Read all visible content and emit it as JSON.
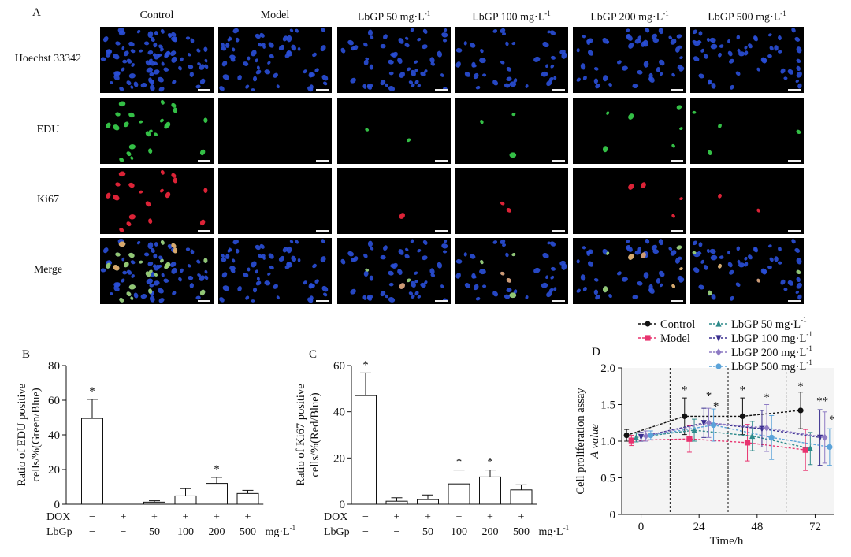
{
  "panelA": {
    "letter": "A",
    "columns": [
      "Control",
      "Model",
      "LbGP 50 mg·L",
      "LbGP 100 mg·L",
      "LbGP 200 mg·L",
      "LbGP 500 mg·L"
    ],
    "column_sup": "-1",
    "rows": [
      "Hoechst 33342",
      "EDU",
      "Ki67",
      "Merge"
    ],
    "stain_colors": {
      "Hoechst 33342": "#2a4fd8",
      "EDU": "#37c94a",
      "Ki67": "#e8253a"
    },
    "positive_nuclei_per_field": {
      "EDU": [
        24,
        0,
        2,
        3,
        6,
        4
      ],
      "Ki67": [
        18,
        0,
        1,
        2,
        4,
        2
      ]
    }
  },
  "chart_data": [
    {
      "panel": "B",
      "type": "bar",
      "ylabel": "Ratio of EDU positive cells/%(Green/Blue)",
      "ylim": [
        0,
        80
      ],
      "yticks": [
        0,
        20,
        40,
        60,
        80
      ],
      "values": [
        49.5,
        0,
        1.2,
        4.8,
        12.0,
        6.2
      ],
      "errors": [
        11,
        0,
        0.8,
        4.2,
        3.5,
        1.8
      ],
      "significance": [
        "*",
        "",
        "",
        "",
        "*",
        ""
      ],
      "treatment_rows": {
        "DOX": [
          "−",
          "+",
          "+",
          "+",
          "+",
          "+"
        ],
        "LbGp": [
          "−",
          "−",
          "50",
          "100",
          "200",
          "500"
        ],
        "unit": "mg·L",
        "unit_sup": "-1"
      }
    },
    {
      "panel": "C",
      "type": "bar",
      "ylabel": "Ratio of Ki67 positive cells/%(Red/Blue)",
      "ylim": [
        0,
        60
      ],
      "yticks": [
        0,
        20,
        40,
        60
      ],
      "values": [
        47.0,
        1.3,
        2.0,
        8.8,
        11.8,
        6.2
      ],
      "errors": [
        9.8,
        1.5,
        2.0,
        6.0,
        3.0,
        2.2
      ],
      "significance": [
        "*",
        "",
        "",
        "*",
        "*",
        ""
      ],
      "treatment_rows": {
        "DOX": [
          "−",
          "+",
          "+",
          "+",
          "+",
          "+"
        ],
        "LbGp": [
          "−",
          "−",
          "50",
          "100",
          "200",
          "500"
        ],
        "unit": "mg·L",
        "unit_sup": "-1"
      }
    },
    {
      "panel": "D",
      "type": "line",
      "xlabel": "Time/h",
      "ylabel_line1": "Cell proliferation assay",
      "ylabel_line2": "A value",
      "xlim": [
        -8,
        80
      ],
      "ylim": [
        0,
        2.0
      ],
      "xticks": [
        0,
        24,
        48,
        72
      ],
      "yticks": [
        0,
        0.5,
        1.0,
        1.5,
        2.0
      ],
      "ytick_labels": [
        "0",
        "0.5",
        "1.0",
        "1.5",
        "2.0"
      ],
      "dashed_vlines_x": [
        12,
        36,
        60
      ],
      "series": [
        {
          "name": "Control",
          "color": "#111111",
          "marker": "circle",
          "x": [
            -6,
            18,
            42,
            66
          ],
          "y": [
            1.08,
            1.34,
            1.34,
            1.42
          ],
          "err": [
            0.08,
            0.25,
            0.25,
            0.25
          ]
        },
        {
          "name": "Model",
          "color": "#e8336f",
          "marker": "square",
          "x": [
            -4,
            20,
            44,
            68
          ],
          "y": [
            1.01,
            1.03,
            0.98,
            0.88
          ],
          "err": [
            0.07,
            0.18,
            0.25,
            0.28
          ]
        },
        {
          "name": "LbGP 50 mg·L",
          "color": "#2e8b8b",
          "marker": "triangle-up",
          "x": [
            -2,
            22,
            46,
            70
          ],
          "y": [
            1.05,
            1.15,
            1.07,
            0.9
          ],
          "err": [
            0.06,
            0.15,
            0.2,
            0.22
          ]
        },
        {
          "name": "LbGP 100 mg·L",
          "color": "#3a2f8f",
          "marker": "triangle-down",
          "x": [
            0,
            26,
            50,
            74
          ],
          "y": [
            1.06,
            1.25,
            1.17,
            1.05
          ],
          "err": [
            0.06,
            0.2,
            0.25,
            0.38
          ]
        },
        {
          "name": "LbGP 200 mg·L",
          "color": "#8e7bc4",
          "marker": "diamond",
          "x": [
            2,
            28,
            52,
            76
          ],
          "y": [
            1.07,
            1.25,
            1.18,
            1.05
          ],
          "err": [
            0.07,
            0.2,
            0.32,
            0.35
          ]
        },
        {
          "name": "LbGP 500 mg·L",
          "color": "#5ba3d9",
          "marker": "circle",
          "x": [
            4,
            30,
            54,
            78
          ],
          "y": [
            1.08,
            1.22,
            1.05,
            0.92
          ],
          "err": [
            0.06,
            0.22,
            0.3,
            0.25
          ]
        }
      ],
      "legend_sup": "-1",
      "star_marks": [
        {
          "x": 18,
          "y": 1.65,
          "text": "*"
        },
        {
          "x": 28,
          "y": 1.57,
          "text": "*"
        },
        {
          "x": 31,
          "y": 1.43,
          "text": "*"
        },
        {
          "x": 42,
          "y": 1.65,
          "text": "*"
        },
        {
          "x": 52,
          "y": 1.55,
          "text": "*"
        },
        {
          "x": 66,
          "y": 1.7,
          "text": "*"
        },
        {
          "x": 75,
          "y": 1.5,
          "text": "**"
        },
        {
          "x": 79,
          "y": 1.25,
          "text": "*"
        }
      ]
    }
  ],
  "letters": {
    "B": "B",
    "C": "C",
    "D": "D"
  },
  "treatment_labels": {
    "dox": "DOX",
    "lbgp": "LbGp"
  }
}
